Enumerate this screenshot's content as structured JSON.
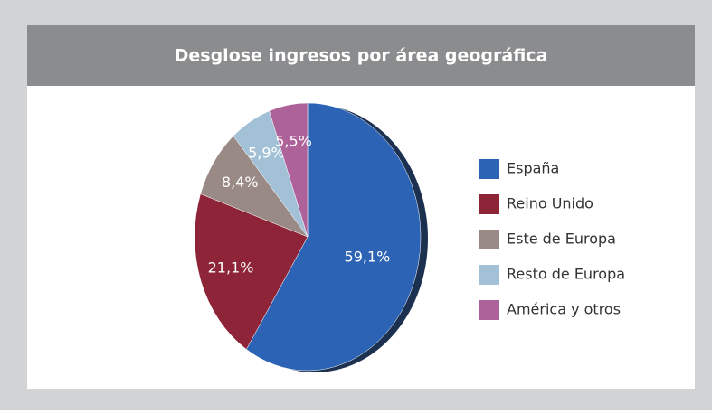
{
  "chart_data": {
    "type": "pie",
    "title": "Desglose ingresos por área geográfica",
    "categories": [
      "España",
      "Reino Unido",
      "Este de Europa",
      "Resto de Europa",
      "América y otros"
    ],
    "values": [
      59.1,
      21.1,
      8.4,
      5.9,
      5.5
    ],
    "value_labels": [
      "59,1%",
      "21,1%",
      "8,4%",
      "5,9%",
      "5,5%"
    ],
    "colors": [
      "#2c63b5",
      "#8e2437",
      "#9a8a86",
      "#a3c1d6",
      "#ad6299"
    ],
    "legend": "right"
  }
}
